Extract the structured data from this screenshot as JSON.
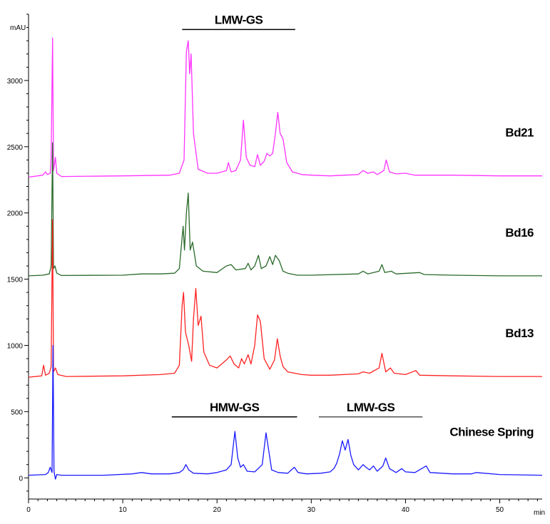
{
  "chart_data": {
    "type": "line",
    "xlabel": "min",
    "ylabel": "mAU",
    "xlim": [
      0,
      54.5
    ],
    "ylim": [
      -160,
      3500
    ],
    "x_ticks": [
      0,
      10,
      20,
      30,
      40,
      50
    ],
    "y_ticks": [
      0,
      500,
      1000,
      1500,
      2000,
      2500,
      3000
    ],
    "x_minor_step": 1,
    "y_minor_step": 100,
    "grid": false,
    "series": [
      {
        "name": "Bd21",
        "color": "#ff33ff",
        "points": [
          [
            0,
            2270
          ],
          [
            1.5,
            2285
          ],
          [
            1.8,
            2310
          ],
          [
            2.0,
            2290
          ],
          [
            2.3,
            2300
          ],
          [
            2.4,
            2420
          ],
          [
            2.55,
            3320
          ],
          [
            2.65,
            2320
          ],
          [
            2.85,
            2420
          ],
          [
            3.0,
            2300
          ],
          [
            3.5,
            2275
          ],
          [
            10,
            2280
          ],
          [
            15,
            2285
          ],
          [
            16,
            2300
          ],
          [
            16.5,
            2400
          ],
          [
            16.75,
            3220
          ],
          [
            16.95,
            3300
          ],
          [
            17.1,
            3050
          ],
          [
            17.25,
            3200
          ],
          [
            17.5,
            2600
          ],
          [
            18.0,
            2330
          ],
          [
            19,
            2300
          ],
          [
            20,
            2300
          ],
          [
            21,
            2320
          ],
          [
            21.2,
            2380
          ],
          [
            21.5,
            2310
          ],
          [
            22,
            2320
          ],
          [
            22.5,
            2400
          ],
          [
            22.8,
            2700
          ],
          [
            23.1,
            2420
          ],
          [
            23.5,
            2360
          ],
          [
            24,
            2350
          ],
          [
            24.3,
            2440
          ],
          [
            24.6,
            2360
          ],
          [
            25,
            2390
          ],
          [
            25.3,
            2450
          ],
          [
            25.6,
            2430
          ],
          [
            25.9,
            2450
          ],
          [
            26.2,
            2600
          ],
          [
            26.45,
            2760
          ],
          [
            26.7,
            2600
          ],
          [
            27.0,
            2560
          ],
          [
            27.4,
            2380
          ],
          [
            28,
            2310
          ],
          [
            29,
            2290
          ],
          [
            30,
            2285
          ],
          [
            32,
            2280
          ],
          [
            35,
            2290
          ],
          [
            35.5,
            2320
          ],
          [
            36,
            2300
          ],
          [
            36.6,
            2310
          ],
          [
            37,
            2290
          ],
          [
            37.7,
            2320
          ],
          [
            37.95,
            2400
          ],
          [
            38.3,
            2310
          ],
          [
            39,
            2295
          ],
          [
            40,
            2300
          ],
          [
            41,
            2285
          ],
          [
            45,
            2285
          ],
          [
            50,
            2280
          ],
          [
            54.5,
            2280
          ]
        ]
      },
      {
        "name": "Bd16",
        "color": "#2a6a2a",
        "points": [
          [
            0,
            1525
          ],
          [
            1.5,
            1530
          ],
          [
            2.2,
            1540
          ],
          [
            2.4,
            1600
          ],
          [
            2.55,
            2530
          ],
          [
            2.65,
            1580
          ],
          [
            2.8,
            1600
          ],
          [
            3.0,
            1545
          ],
          [
            3.5,
            1528
          ],
          [
            10,
            1530
          ],
          [
            12,
            1540
          ],
          [
            14,
            1540
          ],
          [
            15.5,
            1545
          ],
          [
            16,
            1580
          ],
          [
            16.4,
            1900
          ],
          [
            16.55,
            1720
          ],
          [
            16.75,
            2000
          ],
          [
            16.95,
            2150
          ],
          [
            17.15,
            1720
          ],
          [
            17.4,
            1780
          ],
          [
            17.8,
            1600
          ],
          [
            18.5,
            1560
          ],
          [
            20,
            1550
          ],
          [
            21,
            1600
          ],
          [
            21.5,
            1610
          ],
          [
            22,
            1570
          ],
          [
            23,
            1580
          ],
          [
            23.3,
            1620
          ],
          [
            23.6,
            1570
          ],
          [
            24,
            1600
          ],
          [
            24.4,
            1680
          ],
          [
            24.7,
            1580
          ],
          [
            25.2,
            1600
          ],
          [
            25.6,
            1670
          ],
          [
            25.9,
            1610
          ],
          [
            26.2,
            1680
          ],
          [
            26.6,
            1640
          ],
          [
            27.0,
            1560
          ],
          [
            27.5,
            1545
          ],
          [
            28.5,
            1530
          ],
          [
            30,
            1530
          ],
          [
            35,
            1540
          ],
          [
            35.5,
            1560
          ],
          [
            36,
            1540
          ],
          [
            37.2,
            1560
          ],
          [
            37.5,
            1610
          ],
          [
            37.8,
            1550
          ],
          [
            38.5,
            1560
          ],
          [
            39,
            1540
          ],
          [
            41.5,
            1550
          ],
          [
            42,
            1535
          ],
          [
            45,
            1530
          ],
          [
            50,
            1525
          ],
          [
            54.5,
            1525
          ]
        ]
      },
      {
        "name": "Bd13",
        "color": "#ff2222",
        "points": [
          [
            0,
            760
          ],
          [
            1.4,
            770
          ],
          [
            1.6,
            850
          ],
          [
            1.8,
            775
          ],
          [
            2.2,
            790
          ],
          [
            2.4,
            840
          ],
          [
            2.55,
            1950
          ],
          [
            2.65,
            800
          ],
          [
            2.85,
            830
          ],
          [
            3.1,
            780
          ],
          [
            4,
            765
          ],
          [
            10,
            770
          ],
          [
            14,
            780
          ],
          [
            15.5,
            790
          ],
          [
            16.0,
            850
          ],
          [
            16.3,
            1300
          ],
          [
            16.45,
            1400
          ],
          [
            16.65,
            1100
          ],
          [
            17.0,
            1000
          ],
          [
            17.3,
            880
          ],
          [
            17.5,
            1200
          ],
          [
            17.75,
            1430
          ],
          [
            18.0,
            1150
          ],
          [
            18.3,
            1220
          ],
          [
            18.6,
            950
          ],
          [
            19.2,
            850
          ],
          [
            20,
            830
          ],
          [
            21,
            890
          ],
          [
            21.4,
            920
          ],
          [
            21.8,
            860
          ],
          [
            22.3,
            830
          ],
          [
            22.6,
            900
          ],
          [
            22.9,
            860
          ],
          [
            23.3,
            930
          ],
          [
            23.6,
            860
          ],
          [
            24.0,
            1000
          ],
          [
            24.3,
            1230
          ],
          [
            24.6,
            1180
          ],
          [
            25.0,
            900
          ],
          [
            25.6,
            820
          ],
          [
            26.1,
            890
          ],
          [
            26.4,
            1050
          ],
          [
            26.7,
            920
          ],
          [
            27.0,
            840
          ],
          [
            27.5,
            800
          ],
          [
            29,
            780
          ],
          [
            30,
            775
          ],
          [
            32,
            775
          ],
          [
            35,
            785
          ],
          [
            35.5,
            800
          ],
          [
            36.2,
            790
          ],
          [
            37.2,
            830
          ],
          [
            37.5,
            940
          ],
          [
            37.9,
            800
          ],
          [
            38.4,
            830
          ],
          [
            38.8,
            790
          ],
          [
            40,
            780
          ],
          [
            41.1,
            810
          ],
          [
            41.5,
            775
          ],
          [
            45,
            770
          ],
          [
            50,
            765
          ],
          [
            54.5,
            765
          ]
        ]
      },
      {
        "name": "Chinese Spring",
        "color": "#1a1aff",
        "points": [
          [
            0,
            20
          ],
          [
            1.8,
            25
          ],
          [
            2.1,
            40
          ],
          [
            2.3,
            80
          ],
          [
            2.5,
            40
          ],
          [
            2.6,
            1000
          ],
          [
            2.7,
            50
          ],
          [
            2.85,
            -10
          ],
          [
            3.0,
            25
          ],
          [
            3.5,
            20
          ],
          [
            8,
            20
          ],
          [
            11,
            30
          ],
          [
            12,
            40
          ],
          [
            13,
            30
          ],
          [
            15,
            30
          ],
          [
            16,
            40
          ],
          [
            16.4,
            60
          ],
          [
            16.7,
            100
          ],
          [
            17.0,
            60
          ],
          [
            17.5,
            35
          ],
          [
            19,
            30
          ],
          [
            20,
            40
          ],
          [
            21,
            60
          ],
          [
            21.5,
            100
          ],
          [
            21.9,
            350
          ],
          [
            22.2,
            150
          ],
          [
            22.5,
            80
          ],
          [
            22.8,
            100
          ],
          [
            23.2,
            50
          ],
          [
            24,
            45
          ],
          [
            24.8,
            100
          ],
          [
            25.2,
            340
          ],
          [
            25.5,
            200
          ],
          [
            25.8,
            60
          ],
          [
            26.5,
            40
          ],
          [
            27.5,
            35
          ],
          [
            28.2,
            80
          ],
          [
            28.6,
            40
          ],
          [
            29.5,
            30
          ],
          [
            31,
            35
          ],
          [
            32,
            45
          ],
          [
            32.4,
            70
          ],
          [
            32.7,
            110
          ],
          [
            33.0,
            180
          ],
          [
            33.3,
            280
          ],
          [
            33.6,
            210
          ],
          [
            33.9,
            290
          ],
          [
            34.2,
            170
          ],
          [
            34.5,
            100
          ],
          [
            35.0,
            60
          ],
          [
            35.5,
            100
          ],
          [
            35.8,
            80
          ],
          [
            36.2,
            60
          ],
          [
            36.6,
            90
          ],
          [
            37.0,
            50
          ],
          [
            37.6,
            90
          ],
          [
            37.9,
            150
          ],
          [
            38.3,
            70
          ],
          [
            39,
            40
          ],
          [
            39.6,
            70
          ],
          [
            40,
            45
          ],
          [
            41,
            40
          ],
          [
            42.2,
            90
          ],
          [
            42.6,
            40
          ],
          [
            45,
            30
          ],
          [
            47,
            30
          ],
          [
            47.5,
            40
          ],
          [
            50,
            25
          ],
          [
            54.5,
            20
          ]
        ]
      }
    ],
    "annotations": [
      {
        "text": "LMW-GS",
        "range": [
          16.3,
          28.3
        ],
        "value": 3385,
        "color": "#000000"
      },
      {
        "text": "HMW-GS",
        "range": [
          15.2,
          28.5
        ],
        "value": 460,
        "color": "#000000"
      },
      {
        "text": "LMW-GS",
        "range": [
          30.8,
          41.8
        ],
        "value": 460,
        "color": "#555555"
      }
    ]
  }
}
